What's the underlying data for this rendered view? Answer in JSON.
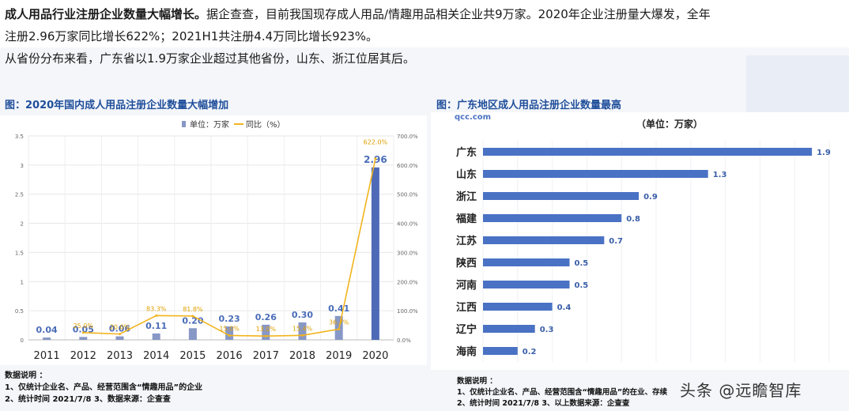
{
  "intro": {
    "lead": "成人用品行业注册企业数量大幅增长。",
    "line1_rest": "据企查查，目前我国现存成人用品/情趣用品相关企业共9万家。2020年企业注册量大爆发，全年",
    "line2": "注册2.96万家同比增长622%；2021H1共注册4.4万同比增长923%。",
    "line3": "从省份分布来看，广东省以1.9万家企业超过其他省份，山东、浙江位居其后。"
  },
  "figures": {
    "left_title": "图：2020年国内成人用品注册企业数量大幅增加",
    "right_title": "图：广东地区成人用品注册企业数量最高"
  },
  "chart_data": [
    {
      "type": "bar",
      "categories": [
        "2011",
        "2012",
        "2013",
        "2014",
        "2015",
        "2016",
        "2017",
        "2018",
        "2019",
        "2020"
      ],
      "series": [
        {
          "name": "单位：万家",
          "type": "bar",
          "values": [
            0.04,
            0.05,
            0.06,
            0.11,
            0.2,
            0.23,
            0.26,
            0.3,
            0.41,
            2.96
          ],
          "labels": [
            "0.04",
            "0.05",
            "0.06",
            "0.11",
            "0.20",
            "0.23",
            "0.26",
            "0.30",
            "0.41",
            "2.96"
          ]
        },
        {
          "name": "同比（%）",
          "type": "line",
          "values": [
            null,
            25.0,
            20.0,
            83.3,
            81.8,
            15.0,
            13.0,
            15.4,
            36.7,
            622.0
          ],
          "labels": [
            "",
            "25.0%",
            "20.0%",
            "83.3%",
            "81.8%",
            "15.0%",
            "13.0%",
            "15.4%",
            "36.7%",
            "622.0%"
          ]
        }
      ],
      "ylim": [
        0,
        3.5
      ],
      "y_ticks": [
        "0",
        "0.5",
        "1",
        "1.5",
        "2",
        "2.5",
        "3",
        "3.5"
      ],
      "y2lim": [
        0,
        700
      ],
      "y2_ticks": [
        "0.0%",
        "100.0%",
        "200.0%",
        "300.0%",
        "400.0%",
        "500.0%",
        "600.0%",
        "700.0%"
      ],
      "grid": true,
      "legend_position": "top",
      "colors": {
        "bar": "#8797c6",
        "bar_highlight": "#4e6ab7",
        "line": "#f2b41e",
        "bar_label": "#4a6cb8",
        "line_label": "#e0a000"
      }
    },
    {
      "type": "bar",
      "orientation": "horizontal",
      "unit_label": "（单位：万家）",
      "logo_text": "qcc.com",
      "categories": [
        "广东",
        "山东",
        "浙江",
        "福建",
        "江苏",
        "陕西",
        "河南",
        "江西",
        "辽宁",
        "海南"
      ],
      "values": [
        1.9,
        1.3,
        0.9,
        0.8,
        0.7,
        0.5,
        0.5,
        0.4,
        0.3,
        0.2
      ],
      "labels": [
        "1.9",
        "1.3",
        "0.9",
        "0.8",
        "0.7",
        "0.5",
        "0.5",
        "0.4",
        "0.3",
        "0.2"
      ],
      "xlim": [
        0,
        2.0
      ],
      "grid": true,
      "colors": {
        "bar": "#4a72c4",
        "label": "#3a5ea8"
      }
    }
  ],
  "notes_left": {
    "title": "数据说明 ：",
    "line1": "1、仅统计企业名、产品、经营范围含“情趣用品”的企业",
    "line2": "2、统计时间 2021/7/8    3、数据来源：企查查"
  },
  "notes_right": {
    "title": "数据说明 ：",
    "line1": "1、仅统计企业名、产品、经营范围含“情趣用品”的在业、存续",
    "line2": "2、统计时间 2021/7/8    3、以上数据来源：企查查"
  },
  "watermark": "头条 @远瞻智库"
}
